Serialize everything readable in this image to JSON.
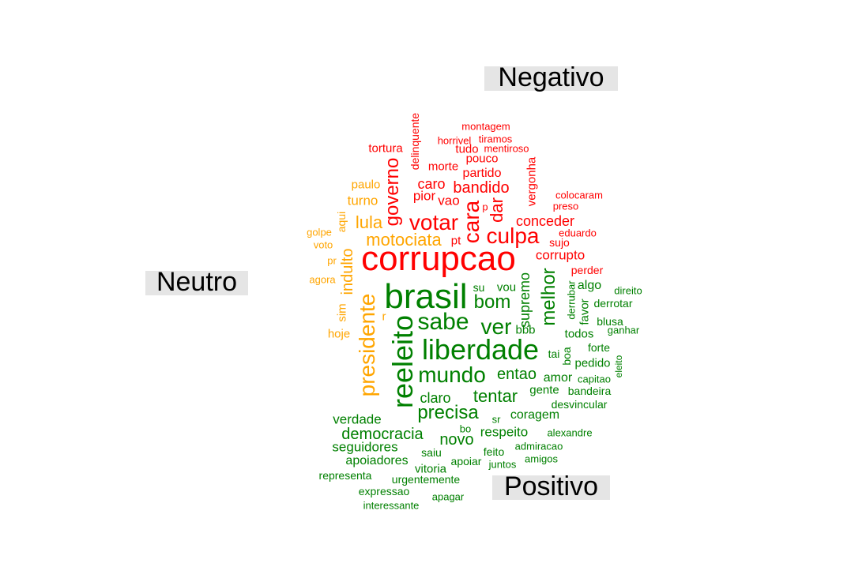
{
  "labels": {
    "negativo": "Negativo",
    "neutro": "Neutro",
    "positivo": "Positivo"
  },
  "colors": {
    "negativo": "#ff0000",
    "neutro": "#ffa500",
    "positivo": "#008000",
    "label_background": "#e5e5e5"
  },
  "words": {
    "negativo": [
      "corrupcao",
      "culpa",
      "votar",
      "cara",
      "governo",
      "bandido",
      "dar",
      "conceder",
      "corrupto",
      "caro",
      "pior",
      "vao",
      "partido",
      "morte",
      "delinquente",
      "vergonha",
      "tortura",
      "horrivel",
      "tiramos",
      "montagem",
      "tudo",
      "mentiroso",
      "pouco",
      "colocaram",
      "preso",
      "eduardo",
      "sujo",
      "perder",
      "p",
      "pt"
    ],
    "neutro": [
      "presidente",
      "indulto",
      "motociata",
      "lula",
      "turno",
      "paulo",
      "aqui",
      "golpe",
      "voto",
      "pr",
      "agora",
      "sim",
      "hoje",
      "r"
    ],
    "positivo": [
      "brasil",
      "reeleito",
      "liberdade",
      "sabe",
      "mundo",
      "ver",
      "bom",
      "melhor",
      "supremo",
      "precisa",
      "tentar",
      "democracia",
      "entao",
      "claro",
      "novo",
      "respeito",
      "seguidores",
      "verdade",
      "coragem",
      "apoiadores",
      "amor",
      "gente",
      "todos",
      "bbb",
      "vou",
      "su",
      "algo",
      "favor",
      "derrubar",
      "boa",
      "pedido",
      "derrotar",
      "direito",
      "blusa",
      "ganhar",
      "forte",
      "tai",
      "eleito",
      "capitao",
      "bandeira",
      "desvincular",
      "alexandre",
      "admiracao",
      "feito",
      "juntos",
      "amigos",
      "saiu",
      "apoiar",
      "vitoria",
      "urgentemente",
      "representa",
      "expressao",
      "apagar",
      "interessante",
      "sr",
      "bo"
    ]
  }
}
